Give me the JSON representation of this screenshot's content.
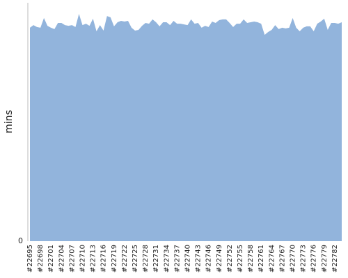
{
  "chart_data": {
    "type": "area",
    "y_label": "mins",
    "color": "#92b4dc",
    "categories": [
      "#22695",
      null,
      null,
      "#22698",
      null,
      null,
      "#22701",
      null,
      null,
      "#22704",
      null,
      null,
      "#22707",
      null,
      null,
      "#22710",
      null,
      null,
      "#22713",
      null,
      null,
      "#22716",
      null,
      null,
      "#22719",
      null,
      null,
      "#22722",
      null,
      null,
      "#22725",
      null,
      null,
      "#22728",
      null,
      null,
      "#22731",
      null,
      null,
      "#22734",
      null,
      null,
      "#22737",
      null,
      null,
      "#22740",
      null,
      null,
      "#22743",
      null,
      null,
      "#22746",
      null,
      null,
      "#22749",
      null,
      null,
      "#22752",
      null,
      null,
      "#22755",
      null,
      null,
      "#22758",
      null,
      null,
      "#22761",
      null,
      null,
      "#22764",
      null,
      null,
      "#22767",
      null,
      null,
      "#22770",
      null,
      null,
      "#22773",
      null,
      null,
      "#22776",
      null,
      null,
      "#22779",
      null,
      null,
      "#22782",
      null,
      null
    ],
    "values": [
      8.98,
      9.09,
      9.01,
      8.98,
      9.39,
      9.06,
      8.98,
      8.92,
      9.18,
      9.18,
      9.09,
      9.06,
      9.09,
      9.01,
      9.56,
      9.09,
      9.15,
      9.06,
      9.36,
      8.83,
      9.09,
      8.86,
      9.47,
      9.42,
      9.04,
      9.21,
      9.27,
      9.24,
      9.27,
      8.98,
      8.86,
      8.89,
      9.06,
      9.18,
      9.15,
      9.33,
      9.21,
      9.04,
      9.21,
      9.21,
      9.09,
      9.27,
      9.15,
      9.15,
      9.12,
      9.09,
      9.33,
      9.15,
      9.18,
      8.98,
      9.06,
      9.01,
      9.24,
      9.18,
      9.3,
      9.33,
      9.33,
      9.18,
      9.01,
      9.15,
      9.15,
      9.33,
      9.18,
      9.21,
      9.24,
      9.21,
      9.15,
      8.68,
      8.8,
      8.89,
      9.09,
      8.92,
      8.98,
      8.95,
      8.98,
      9.39,
      8.98,
      8.83,
      8.98,
      9.04,
      9.04,
      8.83,
      9.15,
      9.24,
      9.36,
      8.89,
      9.18,
      9.18,
      9.15,
      9.21
    ],
    "ylim": [
      0,
      10
    ],
    "yticks": [
      0
    ]
  }
}
